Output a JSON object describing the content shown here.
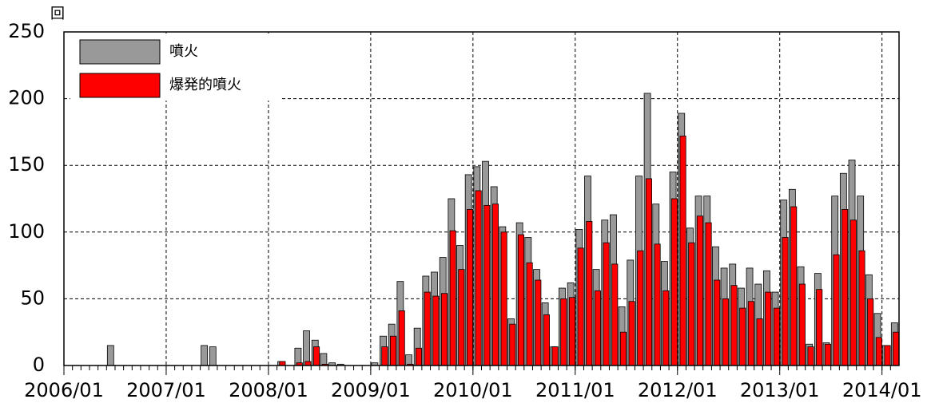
{
  "chart_data": {
    "type": "bar",
    "y_label": "回",
    "legend": "upper left",
    "grid": true,
    "categories": [
      "2006/01",
      null,
      null,
      null,
      null,
      null,
      null,
      null,
      null,
      null,
      null,
      null,
      "2007/01",
      null,
      null,
      null,
      null,
      null,
      null,
      null,
      null,
      null,
      null,
      null,
      "2008/01",
      null,
      null,
      null,
      null,
      null,
      null,
      null,
      null,
      null,
      null,
      null,
      "2009/01",
      null,
      null,
      null,
      null,
      null,
      null,
      null,
      null,
      null,
      null,
      null,
      "2010/01",
      null,
      null,
      null,
      null,
      null,
      null,
      null,
      null,
      null,
      null,
      null,
      "2011/01",
      null,
      null,
      null,
      null,
      null,
      null,
      null,
      null,
      null,
      null,
      null,
      "2012/01",
      null,
      null,
      null,
      null,
      null,
      null,
      null,
      null,
      null,
      null,
      null,
      "2013/01",
      null,
      null,
      null,
      null,
      null,
      null,
      null,
      null,
      null,
      null,
      null,
      "2014/01",
      null
    ],
    "series": [
      {
        "name": "噴火",
        "color": "#999999",
        "values": [
          0,
          0,
          0,
          0,
          0,
          15,
          0,
          0,
          0,
          0,
          0,
          0,
          0,
          0,
          0,
          0,
          15,
          14,
          0,
          0,
          0,
          0,
          0,
          0,
          0,
          3,
          0,
          13,
          26,
          19,
          9,
          2,
          1,
          0,
          0,
          0,
          2,
          22,
          31,
          63,
          8,
          28,
          67,
          70,
          81,
          125,
          90,
          143,
          149,
          153,
          134,
          104,
          35,
          107,
          96,
          72,
          47,
          14,
          58,
          62,
          102,
          142,
          72,
          109,
          113,
          44,
          79,
          142,
          204,
          121,
          78,
          145,
          189,
          103,
          127,
          127,
          89,
          73,
          76,
          58,
          73,
          61,
          71,
          55,
          124,
          132,
          74,
          16,
          69,
          17,
          127,
          144,
          154,
          127,
          68,
          39,
          15,
          32
        ]
      },
      {
        "name": "爆発的噴火",
        "color": "#ff0000",
        "values": [
          0,
          0,
          0,
          0,
          0,
          0,
          0,
          0,
          0,
          0,
          0,
          0,
          0,
          0,
          0,
          0,
          0,
          0,
          0,
          0,
          0,
          0,
          0,
          0,
          0,
          3,
          0,
          2,
          3,
          14,
          1,
          0,
          0,
          0,
          0,
          0,
          0,
          14,
          22,
          41,
          1,
          13,
          55,
          52,
          54,
          101,
          72,
          117,
          131,
          120,
          121,
          100,
          31,
          98,
          77,
          64,
          38,
          14,
          50,
          51,
          88,
          108,
          56,
          92,
          76,
          25,
          48,
          86,
          140,
          91,
          56,
          125,
          172,
          92,
          112,
          107,
          64,
          50,
          60,
          43,
          48,
          35,
          55,
          43,
          96,
          119,
          61,
          14,
          57,
          16,
          83,
          117,
          109,
          86,
          50,
          21,
          15,
          25
        ]
      }
    ],
    "ylim": [
      0,
      250
    ],
    "yticks": [
      0,
      50,
      100,
      150,
      200,
      250
    ]
  }
}
